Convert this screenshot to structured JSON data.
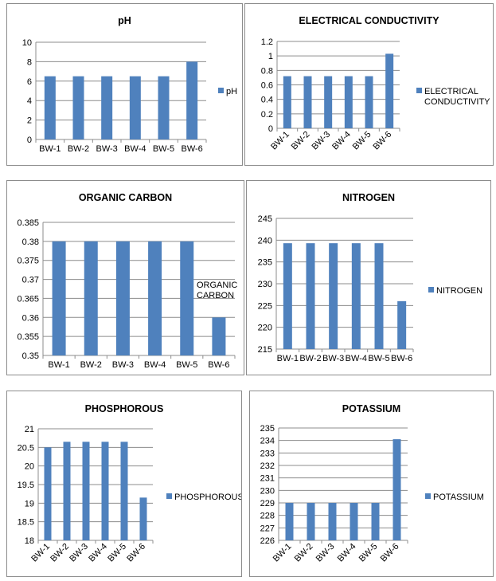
{
  "colors": {
    "bar": "#4f81bd",
    "grid": "#8c8c8c",
    "axis": "#8c8c8c"
  },
  "chart_data": [
    {
      "type": "bar",
      "title": "pH",
      "categories": [
        "BW-1",
        "BW-2",
        "BW-3",
        "BW-4",
        "BW-5",
        "BW-6"
      ],
      "series": [
        {
          "name": "pH",
          "values": [
            6.5,
            6.5,
            6.5,
            6.5,
            6.5,
            8
          ]
        }
      ],
      "ylim": [
        0,
        10
      ],
      "yticks": [
        "0",
        "2",
        "4",
        "6",
        "8",
        "10"
      ],
      "grid": true,
      "legend": "right"
    },
    {
      "type": "bar",
      "title": "ELECTRICAL CONDUCTIVITY",
      "categories": [
        "BW-1",
        "BW-2",
        "BW-3",
        "BW-4",
        "BW-5",
        "BW-6"
      ],
      "series": [
        {
          "name": [
            "ELECTRICAL",
            "CONDUCTIVITY"
          ],
          "values": [
            0.72,
            0.72,
            0.72,
            0.72,
            0.72,
            1.03
          ]
        }
      ],
      "ylim": [
        0,
        1.2
      ],
      "yticks": [
        "0",
        "0.2",
        "0.4",
        "0.6",
        "0.8",
        "1",
        "1.2"
      ],
      "grid": true,
      "legend": "right"
    },
    {
      "type": "bar",
      "title": "ORGANIC CARBON",
      "categories": [
        "BW-1",
        "BW-2",
        "BW-3",
        "BW-4",
        "BW-5",
        "BW-6"
      ],
      "series": [
        {
          "name": [
            "ORGANIC",
            "CARBON"
          ],
          "values": [
            0.38,
            0.38,
            0.38,
            0.38,
            0.38,
            0.36
          ]
        }
      ],
      "ylim": [
        0.35,
        0.385
      ],
      "yticks": [
        "0.35",
        "0.355",
        "0.36",
        "0.365",
        "0.37",
        "0.375",
        "0.38",
        "0.385"
      ],
      "grid": true,
      "legend": "right"
    },
    {
      "type": "bar",
      "title": "NITROGEN",
      "categories": [
        "BW-1",
        "BW-2",
        "BW-3",
        "BW-4",
        "BW-5",
        "BW-6"
      ],
      "series": [
        {
          "name": "NITROGEN",
          "values": [
            239.3,
            239.3,
            239.3,
            239.3,
            239.3,
            226
          ]
        }
      ],
      "ylim": [
        215,
        245
      ],
      "yticks": [
        "215",
        "220",
        "225",
        "230",
        "235",
        "240",
        "245"
      ],
      "grid": true,
      "legend": "right"
    },
    {
      "type": "bar",
      "title": "PHOSPHOROUS",
      "categories": [
        "BW-1",
        "BW-2",
        "BW-3",
        "BW-4",
        "BW-5",
        "BW-6"
      ],
      "series": [
        {
          "name": "PHOSPHOROUS",
          "values": [
            20.5,
            20.65,
            20.65,
            20.65,
            20.65,
            19.15
          ]
        }
      ],
      "ylim": [
        18,
        21
      ],
      "yticks": [
        "18",
        "18.5",
        "19",
        "19.5",
        "20",
        "20.5",
        "21"
      ],
      "grid": true,
      "legend": "right"
    },
    {
      "type": "bar",
      "title": "POTASSIUM",
      "categories": [
        "BW-1",
        "BW-2",
        "BW-3",
        "BW-4",
        "BW-5",
        "BW-6"
      ],
      "series": [
        {
          "name": "POTASSIUM",
          "values": [
            229,
            229,
            229,
            229,
            229,
            234.1
          ]
        }
      ],
      "ylim": [
        226,
        235
      ],
      "yticks": [
        "226",
        "227",
        "228",
        "229",
        "230",
        "231",
        "232",
        "233",
        "234",
        "235"
      ],
      "grid": true,
      "legend": "right"
    }
  ]
}
